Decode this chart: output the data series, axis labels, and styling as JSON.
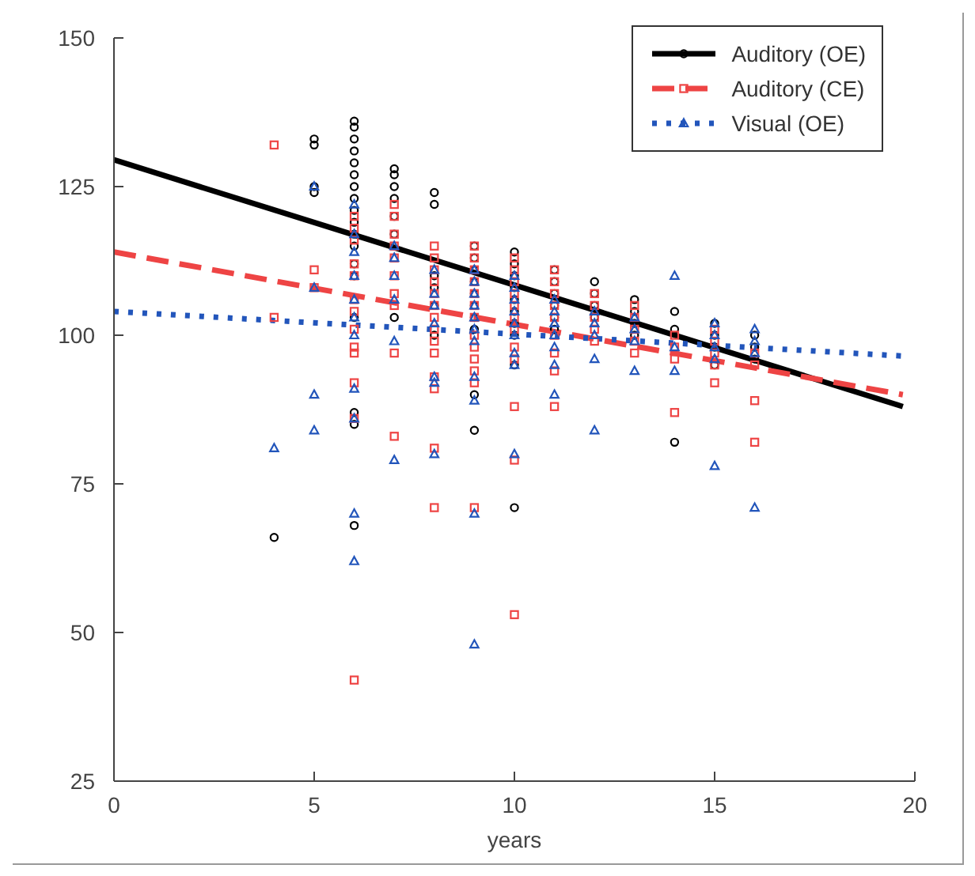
{
  "chart_data": {
    "type": "scatter",
    "xlabel": "years",
    "xlim": [
      0,
      20
    ],
    "xticks": [
      0,
      5,
      10,
      15,
      20
    ],
    "ylim": [
      25,
      150
    ],
    "yticks": [
      25,
      50,
      75,
      100,
      125,
      150
    ],
    "grid": false,
    "legend": "top right",
    "series": [
      {
        "name": "Auditory (OE)",
        "color": "#000000",
        "marker": "circle",
        "x": [
          4,
          5,
          5,
          5,
          5,
          6,
          6,
          6,
          6,
          6,
          6,
          6,
          6,
          6,
          6,
          6,
          6,
          6,
          6,
          6,
          6,
          6,
          6,
          7,
          7,
          7,
          7,
          7,
          7,
          7,
          8,
          8,
          8,
          8,
          8,
          8,
          9,
          9,
          9,
          9,
          9,
          9,
          9,
          9,
          9,
          9,
          10,
          10,
          10,
          10,
          10,
          10,
          10,
          10,
          10,
          10,
          11,
          11,
          11,
          11,
          11,
          11,
          12,
          12,
          12,
          12,
          13,
          13,
          13,
          13,
          14,
          14,
          14,
          15,
          15,
          15,
          15,
          16,
          16,
          16
        ],
        "values": [
          66,
          133,
          132,
          125,
          124,
          136,
          135,
          133,
          131,
          129,
          127,
          125,
          123,
          121,
          119,
          117,
          115,
          112,
          110,
          103,
          87,
          85,
          68,
          128,
          127,
          125,
          123,
          120,
          117,
          103,
          124,
          122,
          110,
          108,
          105,
          100,
          115,
          113,
          111,
          109,
          107,
          105,
          103,
          101,
          90,
          84,
          114,
          112,
          110,
          108,
          106,
          104,
          102,
          100,
          95,
          71,
          111,
          109,
          107,
          105,
          103,
          101,
          109,
          107,
          105,
          103,
          106,
          104,
          102,
          100,
          104,
          101,
          82,
          102,
          100,
          98,
          95,
          100,
          98,
          96
        ]
      },
      {
        "name": "Auditory (CE)",
        "color": "#ee4444",
        "marker": "square",
        "x": [
          4,
          4,
          5,
          5,
          6,
          6,
          6,
          6,
          6,
          6,
          6,
          6,
          6,
          6,
          6,
          6,
          6,
          7,
          7,
          7,
          7,
          7,
          7,
          7,
          7,
          7,
          7,
          8,
          8,
          8,
          8,
          8,
          8,
          8,
          8,
          8,
          8,
          8,
          8,
          8,
          8,
          9,
          9,
          9,
          9,
          9,
          9,
          9,
          9,
          9,
          9,
          9,
          9,
          9,
          10,
          10,
          10,
          10,
          10,
          10,
          10,
          10,
          10,
          10,
          10,
          10,
          11,
          11,
          11,
          11,
          11,
          11,
          11,
          11,
          11,
          12,
          12,
          12,
          12,
          12,
          13,
          13,
          13,
          13,
          13,
          14,
          14,
          14,
          14,
          15,
          15,
          15,
          15,
          15,
          16,
          16,
          16,
          16
        ],
        "values": [
          132,
          103,
          111,
          108,
          120,
          118,
          116,
          112,
          110,
          106,
          104,
          101,
          98,
          97,
          92,
          86,
          42,
          122,
          120,
          117,
          115,
          113,
          110,
          107,
          105,
          97,
          83,
          115,
          113,
          111,
          109,
          107,
          105,
          103,
          101,
          99,
          97,
          93,
          91,
          81,
          71,
          115,
          113,
          111,
          109,
          107,
          105,
          103,
          100,
          98,
          96,
          94,
          92,
          71,
          113,
          111,
          109,
          107,
          105,
          103,
          101,
          98,
          96,
          88,
          79,
          53,
          111,
          109,
          107,
          105,
          103,
          100,
          97,
          94,
          88,
          107,
          105,
          103,
          101,
          99,
          105,
          103,
          101,
          99,
          97,
          100,
          98,
          96,
          87,
          101,
          99,
          97,
          95,
          92,
          97,
          95,
          89,
          82
        ]
      },
      {
        "name": "Visual (OE)",
        "color": "#2255bb",
        "marker": "triangle",
        "x": [
          4,
          5,
          5,
          5,
          5,
          6,
          6,
          6,
          6,
          6,
          6,
          6,
          6,
          6,
          6,
          6,
          7,
          7,
          7,
          7,
          7,
          7,
          8,
          8,
          8,
          8,
          8,
          8,
          8,
          9,
          9,
          9,
          9,
          9,
          9,
          9,
          9,
          9,
          9,
          9,
          10,
          10,
          10,
          10,
          10,
          10,
          10,
          10,
          10,
          11,
          11,
          11,
          11,
          11,
          11,
          11,
          12,
          12,
          12,
          12,
          12,
          13,
          13,
          13,
          13,
          14,
          14,
          14,
          15,
          15,
          15,
          15,
          15,
          16,
          16,
          16,
          16
        ],
        "values": [
          81,
          125,
          108,
          90,
          84,
          122,
          117,
          114,
          110,
          106,
          103,
          100,
          91,
          86,
          70,
          62,
          115,
          113,
          110,
          106,
          99,
          79,
          111,
          107,
          105,
          102,
          93,
          92,
          80,
          111,
          109,
          107,
          105,
          103,
          101,
          99,
          93,
          89,
          70,
          48,
          110,
          108,
          106,
          104,
          102,
          100,
          97,
          95,
          80,
          106,
          104,
          102,
          100,
          98,
          95,
          90,
          104,
          102,
          100,
          96,
          84,
          103,
          101,
          99,
          94,
          110,
          98,
          94,
          102,
          100,
          98,
          96,
          78,
          101,
          99,
          97,
          71
        ]
      },
      {
        "type": "line",
        "color": "#000000",
        "line_style": "solid",
        "x": [
          0,
          19.7
        ],
        "values": [
          129.5,
          88
        ]
      },
      {
        "type": "line",
        "color": "#ee4444",
        "line_style": "dashed",
        "x": [
          0,
          19.7
        ],
        "values": [
          114,
          90
        ]
      },
      {
        "type": "line",
        "color": "#2255bb",
        "line_style": "dotted",
        "x": [
          0,
          19.7
        ],
        "values": [
          104,
          96.5
        ]
      }
    ]
  }
}
